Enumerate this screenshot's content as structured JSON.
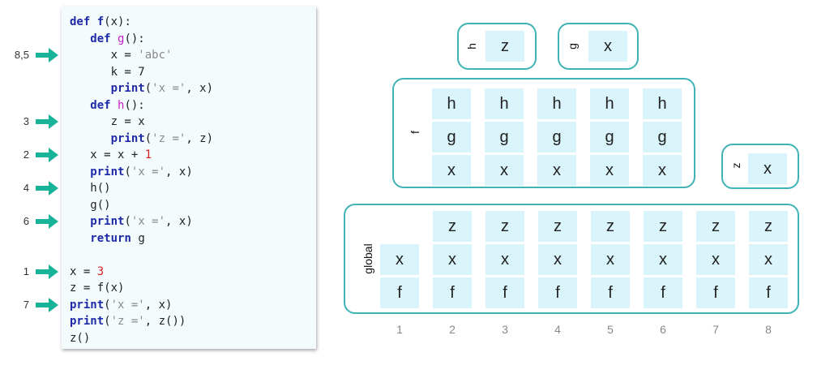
{
  "code_lines": [
    [
      [
        "kw",
        "def "
      ],
      [
        "kw",
        "f"
      ],
      [
        "plain",
        "(x):"
      ]
    ],
    [
      [
        "plain",
        "   "
      ],
      [
        "kw",
        "def "
      ],
      [
        "fn",
        "g"
      ],
      [
        "plain",
        "():"
      ]
    ],
    [
      [
        "plain",
        "      "
      ],
      [
        "plain",
        "x = "
      ],
      [
        "str",
        "'abc'"
      ]
    ],
    [
      [
        "plain",
        "      "
      ],
      [
        "plain",
        "k = 7"
      ]
    ],
    [
      [
        "plain",
        "      "
      ],
      [
        "kw",
        "print"
      ],
      [
        "plain",
        "("
      ],
      [
        "str",
        "'x ='"
      ],
      [
        "plain",
        ", x)"
      ]
    ],
    [
      [
        "plain",
        "   "
      ],
      [
        "kw",
        "def "
      ],
      [
        "fn",
        "h"
      ],
      [
        "plain",
        "():"
      ]
    ],
    [
      [
        "plain",
        "      "
      ],
      [
        "plain",
        "z = x"
      ]
    ],
    [
      [
        "plain",
        "      "
      ],
      [
        "kw",
        "print"
      ],
      [
        "plain",
        "("
      ],
      [
        "str",
        "'z ='"
      ],
      [
        "plain",
        ", z)"
      ]
    ],
    [
      [
        "plain",
        "   "
      ],
      [
        "plain",
        "x = x + "
      ],
      [
        "num",
        "1"
      ]
    ],
    [
      [
        "plain",
        "   "
      ],
      [
        "kw",
        "print"
      ],
      [
        "plain",
        "("
      ],
      [
        "str",
        "'x ='"
      ],
      [
        "plain",
        ", x)"
      ]
    ],
    [
      [
        "plain",
        "   "
      ],
      [
        "plain",
        "h()"
      ]
    ],
    [
      [
        "plain",
        "   "
      ],
      [
        "plain",
        "g()"
      ]
    ],
    [
      [
        "plain",
        "   "
      ],
      [
        "kw",
        "print"
      ],
      [
        "plain",
        "("
      ],
      [
        "str",
        "'x ='"
      ],
      [
        "plain",
        ", x)"
      ]
    ],
    [
      [
        "plain",
        "   "
      ],
      [
        "kw",
        "return "
      ],
      [
        "plain",
        "g"
      ]
    ],
    [],
    [
      [
        "plain",
        "x = "
      ],
      [
        "num",
        "3"
      ]
    ],
    [
      [
        "plain",
        "z = f(x)"
      ]
    ],
    [
      [
        "kw",
        "print"
      ],
      [
        "plain",
        "("
      ],
      [
        "str",
        "'x ='"
      ],
      [
        "plain",
        ", x)"
      ]
    ],
    [
      [
        "kw",
        "print"
      ],
      [
        "plain",
        "("
      ],
      [
        "str",
        "'z ='"
      ],
      [
        "plain",
        ", z())"
      ]
    ],
    [
      [
        "plain",
        "z()"
      ]
    ]
  ],
  "step_markers": [
    {
      "label": "8,5",
      "line": 2
    },
    {
      "label": "3",
      "line": 6
    },
    {
      "label": "2",
      "line": 8
    },
    {
      "label": "4",
      "line": 10
    },
    {
      "label": "6",
      "line": 12
    },
    {
      "label": "1",
      "line": 15
    },
    {
      "label": "7",
      "line": 17
    }
  ],
  "colors": {
    "arrow": "#19b39a",
    "frame_border": "#3fb3b6",
    "cell_fill": "#d9f4fa"
  },
  "frames": {
    "h_frame": {
      "label": "h",
      "cells": [
        "z"
      ]
    },
    "g_frame": {
      "label": "g",
      "cells": [
        "x"
      ]
    },
    "f_frame": {
      "label": "f",
      "rows": [
        "h",
        "g",
        "x"
      ],
      "columns": 5
    },
    "z_frame": {
      "label": "z",
      "cells": [
        "x"
      ]
    },
    "global_frame": {
      "label": "global",
      "first_column": [
        "x",
        "f"
      ],
      "rows": [
        "z",
        "x",
        "f"
      ],
      "columns": 7
    }
  },
  "column_labels": [
    "1",
    "2",
    "3",
    "4",
    "5",
    "6",
    "7",
    "8"
  ]
}
